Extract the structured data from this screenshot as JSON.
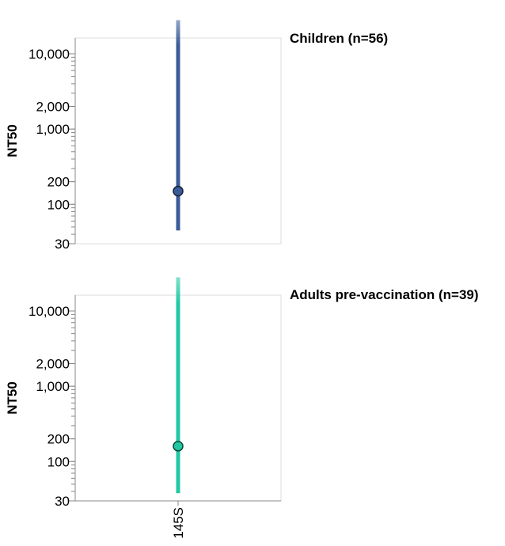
{
  "chart_data": [
    {
      "type": "errorbar",
      "title": "Children (n=56)",
      "ylabel": "NT50",
      "yscale": "log",
      "ylim": [
        30,
        20000
      ],
      "yticks": [
        {
          "value": 30,
          "label": "30"
        },
        {
          "value": 100,
          "label": "100"
        },
        {
          "value": 200,
          "label": "200"
        },
        {
          "value": 1000,
          "label": "1,000"
        },
        {
          "value": 2000,
          "label": "2,000"
        },
        {
          "value": 10000,
          "label": "10,000"
        }
      ],
      "categories": [
        "145S"
      ],
      "points": [
        {
          "x": "145S",
          "y": 150,
          "low": 45,
          "high": 28000
        }
      ],
      "color": "#3b5b98",
      "grid": false
    },
    {
      "type": "errorbar",
      "title": "Adults pre-vaccination (n=39)",
      "ylabel": "NT50",
      "yscale": "log",
      "ylim": [
        30,
        20000
      ],
      "yticks": [
        {
          "value": 30,
          "label": "30"
        },
        {
          "value": 100,
          "label": "100"
        },
        {
          "value": 200,
          "label": "200"
        },
        {
          "value": 1000,
          "label": "1,000"
        },
        {
          "value": 2000,
          "label": "2,000"
        },
        {
          "value": 10000,
          "label": "10,000"
        }
      ],
      "categories": [
        "145S"
      ],
      "points": [
        {
          "x": "145S",
          "y": 160,
          "low": 38,
          "high": 28000
        }
      ],
      "color": "#1fc9a4",
      "grid": false
    }
  ],
  "xaxis": {
    "tick_label": "145S"
  }
}
